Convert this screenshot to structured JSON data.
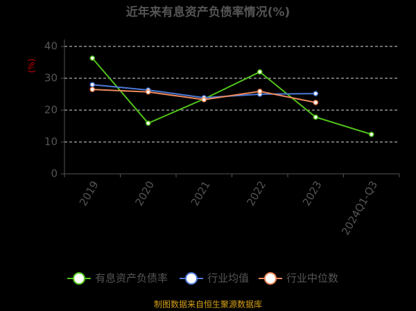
{
  "chart_data": {
    "type": "line",
    "title": "近年来有息资产负债率情况(%)",
    "y_label": "(%)",
    "categories": [
      "2019",
      "2020",
      "2021",
      "2022",
      "2023",
      "2024Q1-Q3"
    ],
    "series": [
      {
        "name": "有息资产负债率",
        "color": "#52c41a",
        "values": [
          36.3,
          15.9,
          23.5,
          32.0,
          17.8,
          12.4
        ]
      },
      {
        "name": "行业均值",
        "color": "#4e7bd9",
        "values": [
          28.0,
          26.3,
          23.9,
          25.0,
          25.2,
          null
        ]
      },
      {
        "name": "行业中位数",
        "color": "#f08a5d",
        "values": [
          26.5,
          25.7,
          23.3,
          25.9,
          22.4,
          null
        ]
      }
    ],
    "ylim": [
      0,
      40
    ],
    "yticks": [
      0,
      10,
      20,
      30,
      40
    ],
    "grid": true,
    "footer": "制图数据来自恒生聚源数据库"
  }
}
